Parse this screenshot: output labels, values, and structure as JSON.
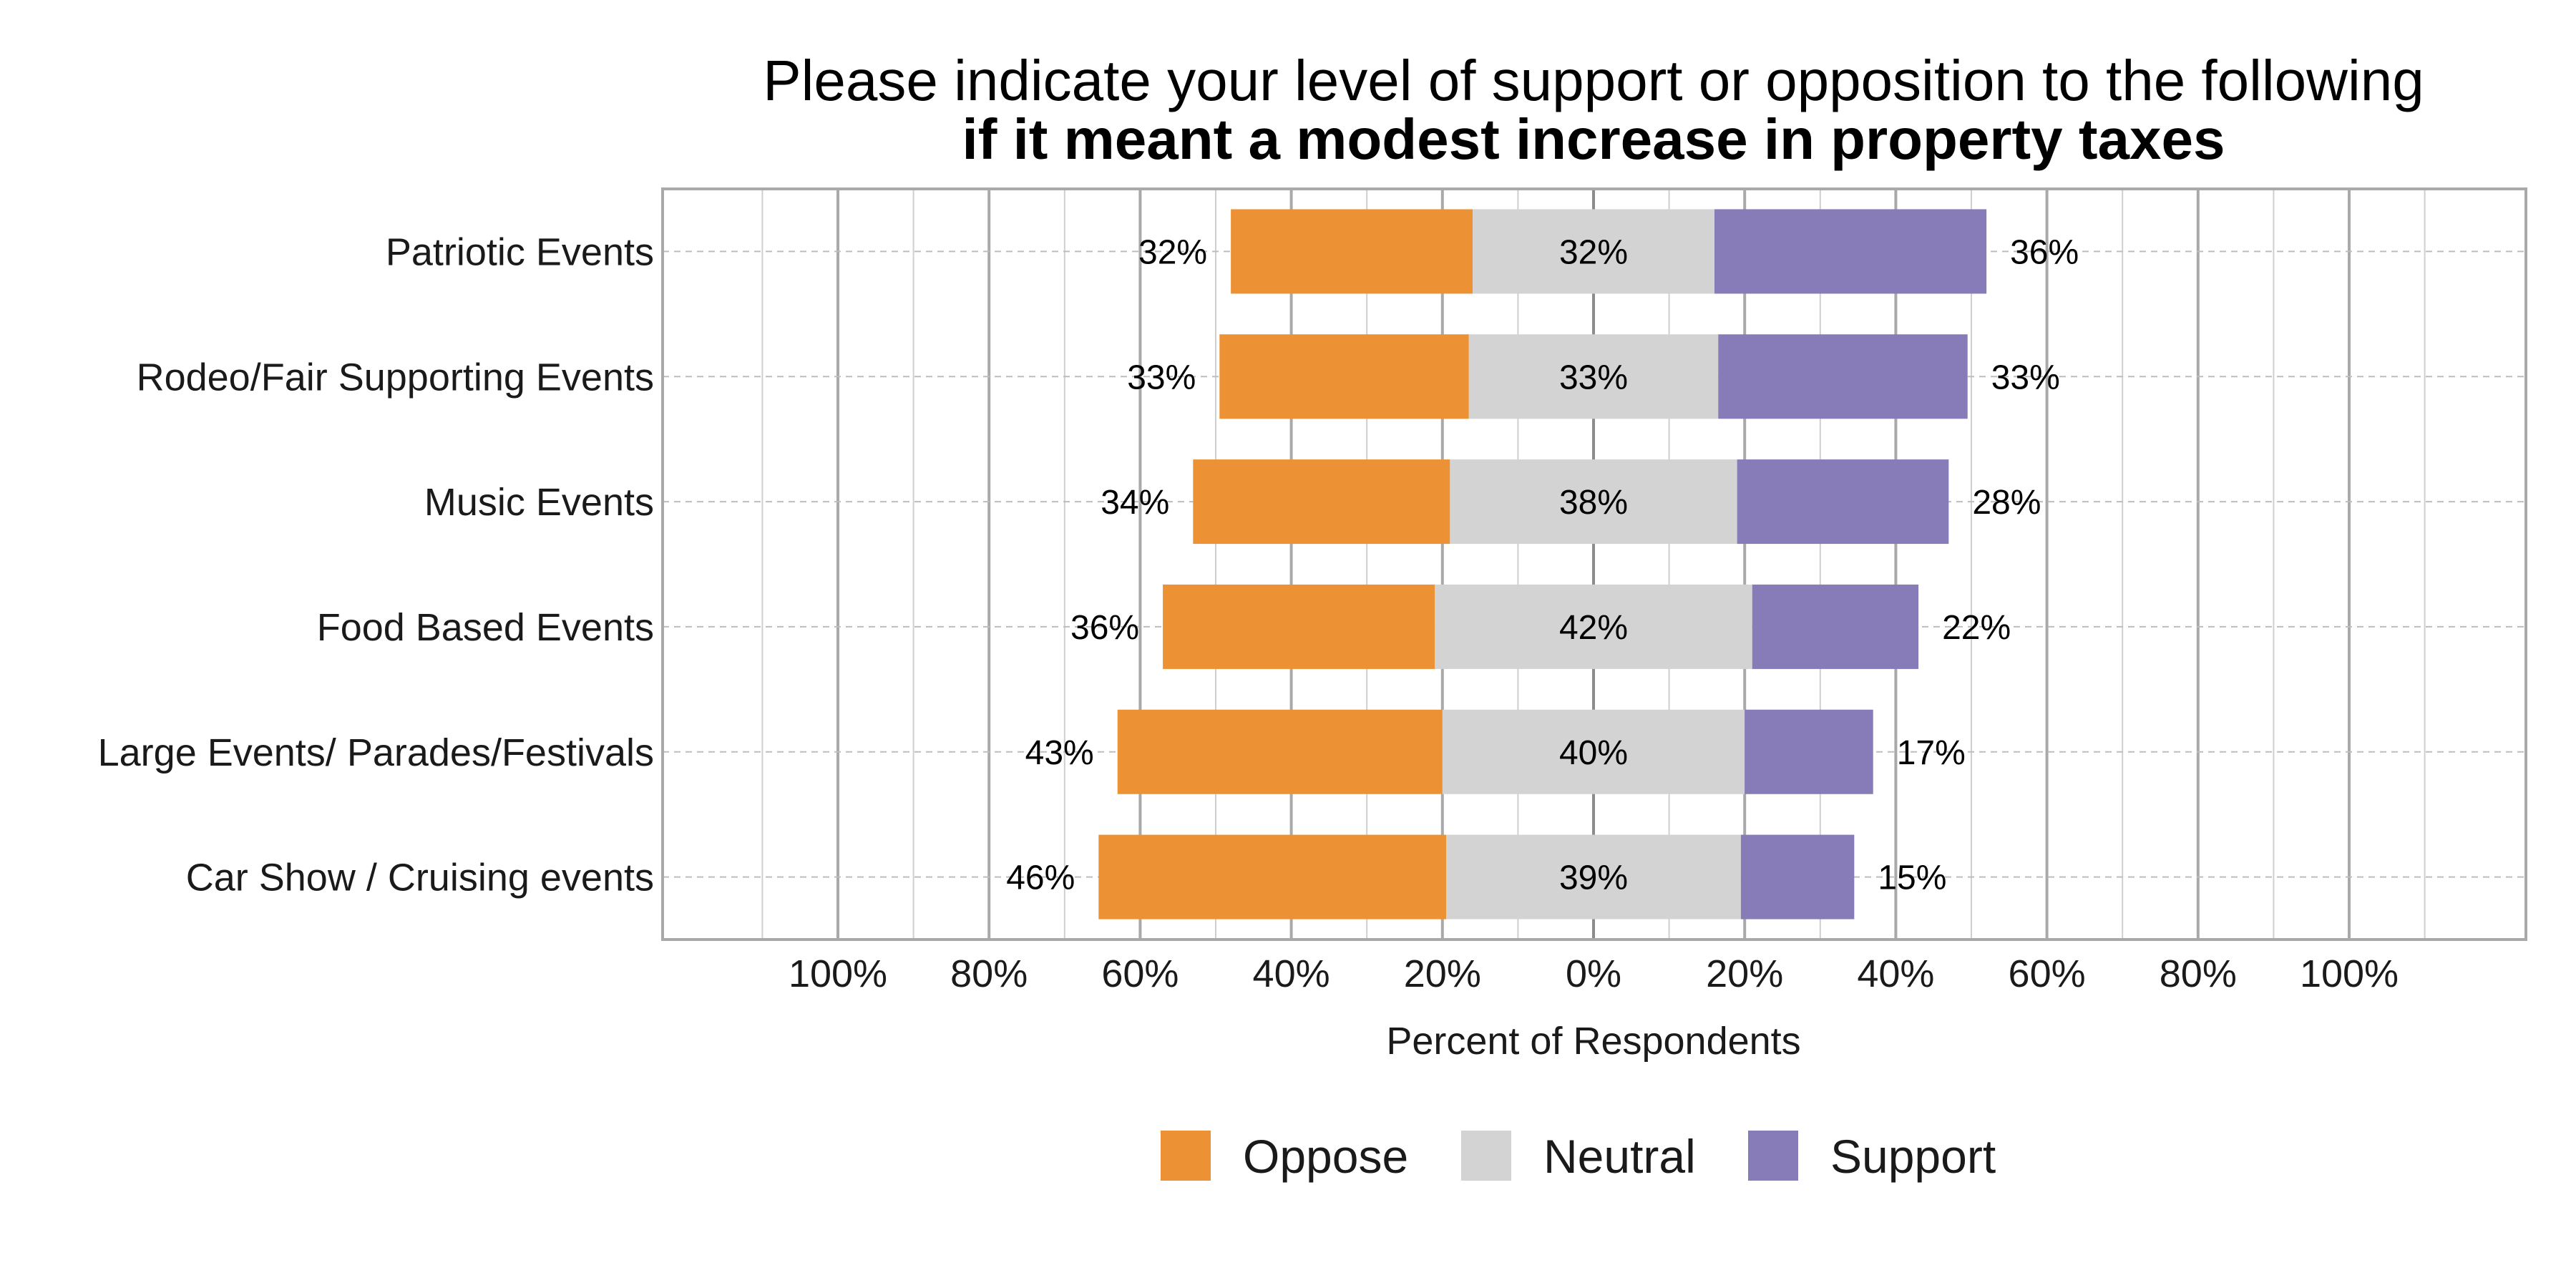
{
  "chart_data": {
    "type": "bar",
    "orientation": "horizontal",
    "layout": "diverging-stacked",
    "title": "Please indicate your level of support or opposition to the following",
    "subtitle": "if it meant a modest increase in property taxes",
    "xlabel": "Percent of Respondents",
    "ylabel": "",
    "xlim": [
      -100,
      100
    ],
    "x_ticks": [
      -100,
      -80,
      -60,
      -40,
      -20,
      0,
      20,
      40,
      60,
      80,
      100
    ],
    "x_tick_labels": [
      "100%",
      "80%",
      "60%",
      "40%",
      "20%",
      "0%",
      "20%",
      "40%",
      "60%",
      "80%",
      "100%"
    ],
    "grid": true,
    "legend_position": "bottom",
    "categories": [
      "Patriotic Events",
      "Rodeo/Fair Supporting Events",
      "Music Events",
      "Food Based Events",
      "Large Events/ Parades/Festivals",
      "Car Show / Cruising events"
    ],
    "series": [
      {
        "name": "Oppose",
        "color": "#EC9234",
        "values": [
          32,
          33,
          34,
          36,
          43,
          46
        ],
        "labels": [
          "32%",
          "33%",
          "34%",
          "36%",
          "43%",
          "46%"
        ]
      },
      {
        "name": "Neutral",
        "color": "#D3D3D3",
        "values": [
          32,
          33,
          38,
          42,
          40,
          39
        ],
        "labels": [
          "32%",
          "33%",
          "38%",
          "42%",
          "40%",
          "39%"
        ]
      },
      {
        "name": "Support",
        "color": "#877BB8",
        "values": [
          36,
          33,
          28,
          22,
          17,
          15
        ],
        "labels": [
          "36%",
          "33%",
          "28%",
          "22%",
          "17%",
          "15%"
        ]
      }
    ]
  }
}
